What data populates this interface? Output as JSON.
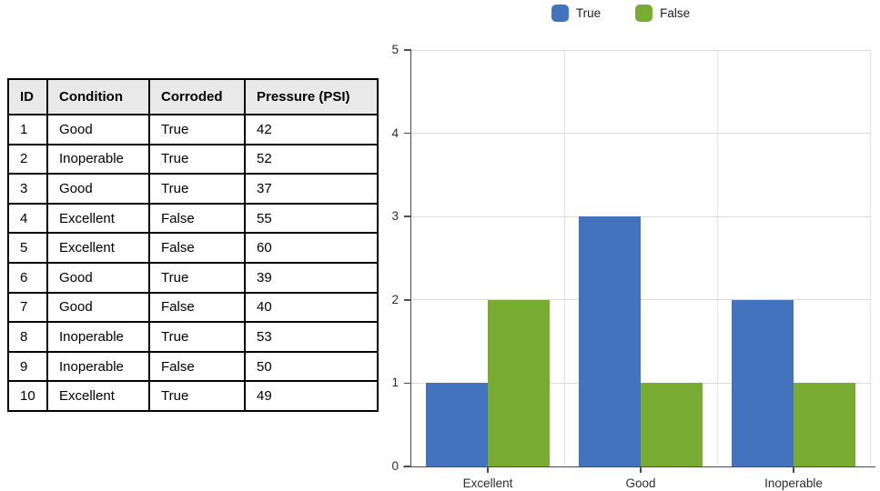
{
  "page": {
    "background": "#ffffff"
  },
  "table": {
    "headers": [
      "ID",
      "Condition",
      "Corroded",
      "Pressure (PSI)"
    ],
    "rows": [
      [
        "1",
        "Good",
        "True",
        "42"
      ],
      [
        "2",
        "Inoperable",
        "True",
        "52"
      ],
      [
        "3",
        "Good",
        "True",
        "37"
      ],
      [
        "4",
        "Excellent",
        "False",
        "55"
      ],
      [
        "5",
        "Excellent",
        "False",
        "60"
      ],
      [
        "6",
        "Good",
        "True",
        "39"
      ],
      [
        "7",
        "Good",
        "False",
        "40"
      ],
      [
        "8",
        "Inoperable",
        "True",
        "53"
      ],
      [
        "9",
        "Inoperable",
        "False",
        "50"
      ],
      [
        "10",
        "Excellent",
        "True",
        "49"
      ]
    ]
  },
  "chart_data": {
    "type": "bar",
    "title": "",
    "categories": [
      "Excellent",
      "Good",
      "Inoperable"
    ],
    "series": [
      {
        "name": "True",
        "color": "#4473BE",
        "values": [
          1,
          3,
          2
        ]
      },
      {
        "name": "False",
        "color": "#77AB31",
        "values": [
          2,
          1,
          1
        ]
      }
    ],
    "xlabel": "",
    "ylabel": "",
    "ylim": [
      0,
      5
    ],
    "yticks": [
      0,
      1,
      2,
      3,
      4,
      5
    ],
    "grid": true,
    "legend_position": "top",
    "colors": {
      "gridline": "#DBDBDB",
      "axis": "#4d4d4d",
      "label": "#2e2e2e"
    }
  }
}
